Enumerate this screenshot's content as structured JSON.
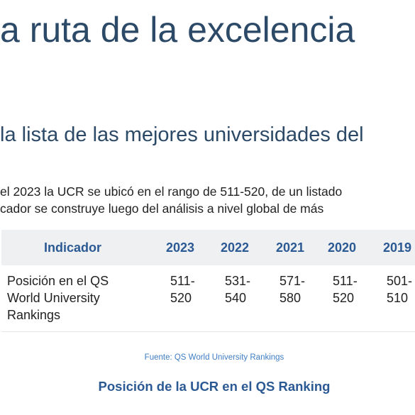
{
  "headline": "a ruta de la excelencia",
  "subheadline": "la lista de las mejores universidades del",
  "intro": {
    "line1": "el 2023 la UCR se ubicó en el rango de 511-520, de un listado",
    "line2": "cador se construye luego del análisis a nivel global de más"
  },
  "table": {
    "headers": [
      "Indicador",
      "2023",
      "2022",
      "2021",
      "2020",
      "2019"
    ],
    "row": {
      "label": [
        "Posición en el QS",
        "World University",
        "Rankings"
      ],
      "values": [
        [
          "511-",
          "520"
        ],
        [
          "531-",
          "540"
        ],
        [
          "571-",
          "580"
        ],
        [
          "511-",
          "520"
        ],
        [
          "501-",
          "510"
        ]
      ]
    }
  },
  "source": "Fuente: QS World University Rankings",
  "caption": "Posición de la UCR en el QS Ranking",
  "colors": {
    "headline": "#2c4a67",
    "accent": "#2b5993",
    "table_header_bg": "#eef0f2",
    "source_link": "#3f7dc4"
  }
}
